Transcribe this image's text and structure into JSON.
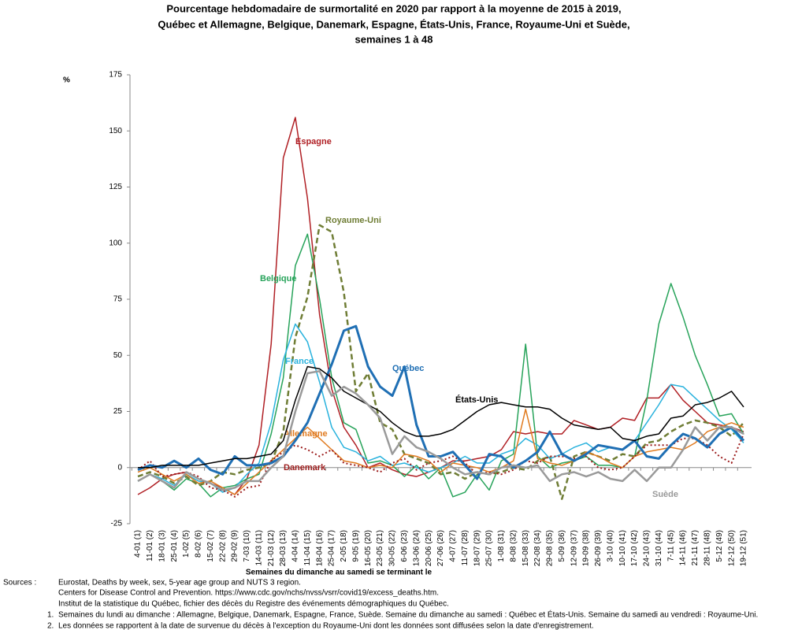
{
  "chart_data": {
    "type": "line",
    "title": [
      "Pourcentage hebdomadaire de surmortalité en 2020 par rapport à la moyenne de 2015 à 2019,",
      "Québec et Allemagne, Belgique, Danemark, Espagne, États-Unis, France, Royaume-Uni et Suède,",
      "semaines 1 à 48"
    ],
    "y_label": "%",
    "x_label": "Semaines du dimanche au samedi se terminant le",
    "categories": [
      "4-01 (1)",
      "11-01 (2)",
      "18-01 (3)",
      "25-01 (4)",
      "1-02 (5)",
      "8-02 (6)",
      "15-02 (7)",
      "22-02 (8)",
      "29-02 (9)",
      "7-03 (10)",
      "14-03 (11)",
      "21-03 (12)",
      "28-03 (13)",
      "4-04 (14)",
      "11-04 (15)",
      "18-04 (16)",
      "25-04 (17)",
      "2-05 (18)",
      "9-05 (19)",
      "16-05 (20)",
      "23-05 (21)",
      "30-05 (22)",
      "6-06 (23)",
      "13-06 (24)",
      "20-06 (25)",
      "27-06 (26)",
      "4-07 (27)",
      "11-07 (28)",
      "18-07 (29)",
      "25-07 (30)",
      "1-08 (31)",
      "8-08 (32)",
      "15-08 (33)",
      "22-08 (34)",
      "29-08 (35)",
      "5-09 (36)",
      "12-09 (37)",
      "19-09 (38)",
      "26-09 (39)",
      "3-10 (40)",
      "10-10 (41)",
      "17-10 (42)",
      "24-10 (43)",
      "31-10 (44)",
      "7-11 (45)",
      "14-11 (46)",
      "21-11 (47)",
      "28-11 (48)",
      "5-12 (49)",
      "12-12 (50)",
      "19-12 (51)"
    ],
    "ylim": [
      -25,
      175
    ],
    "yticks": [
      -25,
      0,
      25,
      50,
      75,
      100,
      125,
      150,
      175
    ],
    "grid": false,
    "series": [
      {
        "name": "Espagne",
        "color": "#b01f24",
        "style": "solid",
        "width": 1.5,
        "values": [
          -12,
          -9,
          -5,
          -3,
          -2,
          -5,
          -7,
          -9,
          -12,
          -5,
          10,
          55,
          138,
          156,
          120,
          68,
          35,
          18,
          10,
          0,
          2,
          -1,
          -3,
          -4,
          -2,
          0,
          3,
          3,
          4,
          5,
          8,
          16,
          15,
          16,
          15,
          15,
          21,
          19,
          17,
          18,
          22,
          21,
          31,
          31,
          37,
          30,
          25,
          20,
          19,
          18,
          16
        ]
      },
      {
        "name": "Belgique",
        "color": "#27a35a",
        "style": "solid",
        "width": 1.5,
        "values": [
          -6,
          -3,
          -6,
          -10,
          -5,
          -7,
          -13,
          -9,
          -8,
          -5,
          -3,
          15,
          40,
          90,
          104,
          75,
          40,
          20,
          17,
          2,
          3,
          1,
          -4,
          1,
          -5,
          0,
          -13,
          -11,
          -3,
          -10,
          3,
          6,
          55,
          5,
          0,
          2,
          3,
          5,
          1,
          1,
          0,
          5,
          30,
          64,
          82,
          67,
          50,
          37,
          23,
          24,
          15
        ]
      },
      {
        "name": "Royaume-Uni",
        "color": "#6f7d35",
        "style": "dashed",
        "width": 2.5,
        "values": [
          -4,
          -2,
          -4,
          -7,
          -4,
          -8,
          -6,
          -2,
          -3,
          -1,
          0,
          2,
          16,
          58,
          76,
          108,
          105,
          78,
          34,
          42,
          20,
          17,
          6,
          4,
          2,
          -3,
          -2,
          -5,
          -2,
          -3,
          -2,
          0,
          -1,
          3,
          5,
          -14,
          5,
          7,
          5,
          3,
          6,
          5,
          11,
          12,
          16,
          19,
          21,
          20,
          18,
          14,
          20
        ]
      },
      {
        "name": "France",
        "color": "#29b2dd",
        "style": "solid",
        "width": 1.5,
        "values": [
          -6,
          -3,
          -5,
          -8,
          -3,
          -6,
          -7,
          -11,
          -9,
          -3,
          2,
          20,
          48,
          64,
          56,
          38,
          18,
          9,
          7,
          3,
          5,
          1,
          2,
          0,
          -2,
          0,
          2,
          5,
          2,
          2,
          6,
          8,
          13,
          10,
          4,
          6,
          9,
          11,
          7,
          9,
          8,
          12,
          20,
          28,
          37,
          36,
          31,
          26,
          21,
          17,
          11
        ]
      },
      {
        "name": "Allemagne",
        "color": "#e07b20",
        "style": "solid",
        "width": 1.5,
        "values": [
          -2,
          0,
          -3,
          -6,
          -3,
          -7,
          -6,
          -9,
          -12,
          -7,
          -2,
          3,
          8,
          13,
          18,
          13,
          8,
          3,
          2,
          0,
          1,
          0,
          6,
          5,
          3,
          -2,
          2,
          1,
          0,
          -2,
          0,
          3,
          26,
          4,
          2,
          1,
          3,
          7,
          5,
          2,
          0,
          5,
          7,
          8,
          9,
          8,
          11,
          16,
          18,
          20,
          18
        ]
      },
      {
        "name": "Danemark",
        "color": "#9c1c1c",
        "style": "dotted",
        "width": 2,
        "values": [
          -1,
          3,
          -4,
          -3,
          -2,
          -4,
          -9,
          -10,
          -13,
          -9,
          -8,
          3,
          7,
          10,
          8,
          5,
          8,
          2,
          1,
          0,
          -2,
          2,
          4,
          -1,
          2,
          3,
          5,
          2,
          -3,
          -2,
          -3,
          -1,
          3,
          2,
          5,
          5,
          4,
          5,
          0,
          -1,
          0,
          5,
          10,
          10,
          10,
          13,
          13,
          10,
          5,
          2,
          15
        ]
      },
      {
        "name": "Québec",
        "color": "#1f6fb4",
        "style": "solid",
        "width": 3,
        "values": [
          -1,
          1,
          0,
          3,
          0,
          4,
          -1,
          -3,
          5,
          1,
          1,
          2,
          5,
          12,
          20,
          33,
          46,
          61,
          63,
          45,
          36,
          32,
          45,
          19,
          5,
          5,
          7,
          1,
          -5,
          6,
          5,
          0,
          3,
          7,
          16,
          6,
          3,
          6,
          10,
          9,
          8,
          12,
          5,
          4,
          10,
          15,
          13,
          9,
          15,
          18,
          12
        ]
      },
      {
        "name": "États-Unis",
        "color": "#000000",
        "style": "solid",
        "width": 1.5,
        "values": [
          0,
          0,
          1,
          1,
          1,
          1,
          2,
          3,
          4,
          4,
          5,
          6,
          12,
          30,
          45,
          44,
          40,
          34,
          31,
          28,
          25,
          20,
          16,
          14,
          14,
          15,
          17,
          21,
          25,
          28,
          29,
          28,
          27,
          27,
          26,
          22,
          19,
          18,
          17,
          18,
          13,
          12,
          14,
          15,
          22,
          23,
          28,
          29,
          31,
          34,
          27
        ]
      },
      {
        "name": "Suède",
        "color": "#9a9a9a",
        "style": "solid",
        "width": 2.5,
        "values": [
          -6,
          -3,
          -6,
          -9,
          -2,
          -5,
          -7,
          -10,
          -9,
          -6,
          -6,
          0,
          5,
          25,
          42,
          43,
          32,
          36,
          33,
          28,
          22,
          6,
          14,
          9,
          7,
          4,
          0,
          -3,
          -2,
          -3,
          0,
          1,
          0,
          1,
          -6,
          -3,
          -2,
          -4,
          -2,
          -5,
          -6,
          -1,
          -6,
          0,
          0,
          8,
          18,
          12,
          18,
          18,
          15
        ]
      }
    ]
  },
  "sources": {
    "label": "Sources :",
    "lines": [
      "Eurostat, Deaths by week, sex, 5-year age group and NUTS 3 region.",
      "Centers for Disease Control and Prevention. https://www.cdc.gov/nchs/nvss/vsrr/covid19/excess_deaths.htm.",
      "Institut de la statistique du Québec, fichier des décès du Registre des événements démographiques du Québec."
    ]
  },
  "notes": [
    {
      "number": "1.",
      "text": "Semaines du lundi au dimanche : Allemagne, Belgique, Danemark, Espagne, France, Suède. Semaine du dimanche au samedi : Québec et États-Unis. Semaine du samedi au vendredi : Royaume-Uni."
    },
    {
      "number": "2.",
      "text": "Les données se rapportent à la date de survenue du décès à l'exception du Royaume-Uni dont les données sont diffusées selon la date d'enregistrement."
    }
  ]
}
